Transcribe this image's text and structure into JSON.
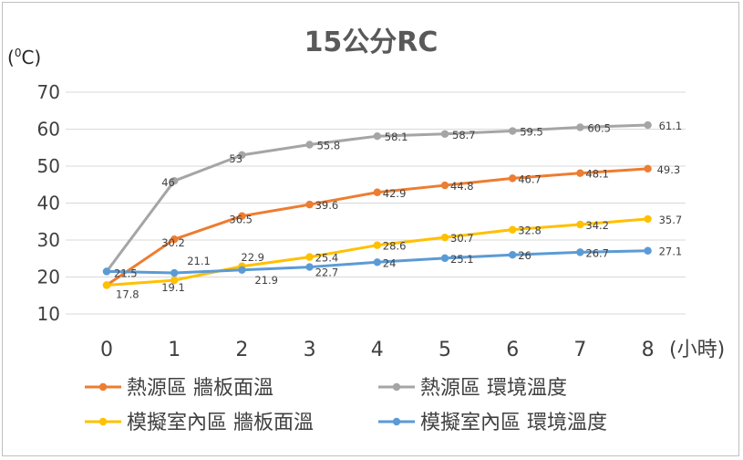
{
  "chart_data": {
    "type": "line",
    "title": "15公分RC",
    "ylabel_prefix": "(",
    "ylabel_sup": "0",
    "ylabel_suffix": "C)",
    "xlabel": "(小時)",
    "ylim": [
      10,
      70
    ],
    "yticks": [
      "10",
      "20",
      "30",
      "40",
      "50",
      "60",
      "70"
    ],
    "x": [
      0,
      1,
      2,
      3,
      4,
      5,
      6,
      7,
      8
    ],
    "xticks": [
      "0",
      "1",
      "2",
      "3",
      "4",
      "5",
      "6",
      "7",
      "8"
    ],
    "grid": true,
    "legend_position": "bottom",
    "series": [
      {
        "name": "熱源區 牆板面溫",
        "color": "#ED7D31",
        "values": [
          17.8,
          30.2,
          36.5,
          39.6,
          42.9,
          44.8,
          46.7,
          48.1,
          49.3
        ],
        "labels": [
          "17.8",
          "30.2",
          "36.5",
          "39.6",
          "42.9",
          "44.8",
          "46.7",
          "48.1",
          "49.3"
        ]
      },
      {
        "name": "熱源區 環境溫度",
        "color": "#A5A5A5",
        "values": [
          21.5,
          46,
          53,
          55.8,
          58.1,
          58.7,
          59.5,
          60.5,
          61.1
        ],
        "labels": [
          "",
          "46",
          "53",
          "55.8",
          "58.1",
          "58.7",
          "59.5",
          "60.5",
          "61.1"
        ]
      },
      {
        "name": "模擬室內區 牆板面溫",
        "color": "#FFC000",
        "values": [
          17.8,
          19.1,
          22.9,
          25.4,
          28.6,
          30.7,
          32.8,
          34.2,
          35.7
        ],
        "labels": [
          "",
          "19.1",
          "22.9",
          "25.4",
          "28.6",
          "30.7",
          "32.8",
          "34.2",
          "35.7"
        ]
      },
      {
        "name": "模擬室內區 環境溫度",
        "color": "#5B9BD5",
        "values": [
          21.5,
          21.1,
          21.9,
          22.7,
          24,
          25.1,
          26,
          26.7,
          27.1
        ],
        "labels": [
          "21.5",
          "21.1",
          "21.9",
          "22.7",
          "24",
          "25.1",
          "26",
          "26.7",
          "27.1"
        ]
      }
    ]
  }
}
